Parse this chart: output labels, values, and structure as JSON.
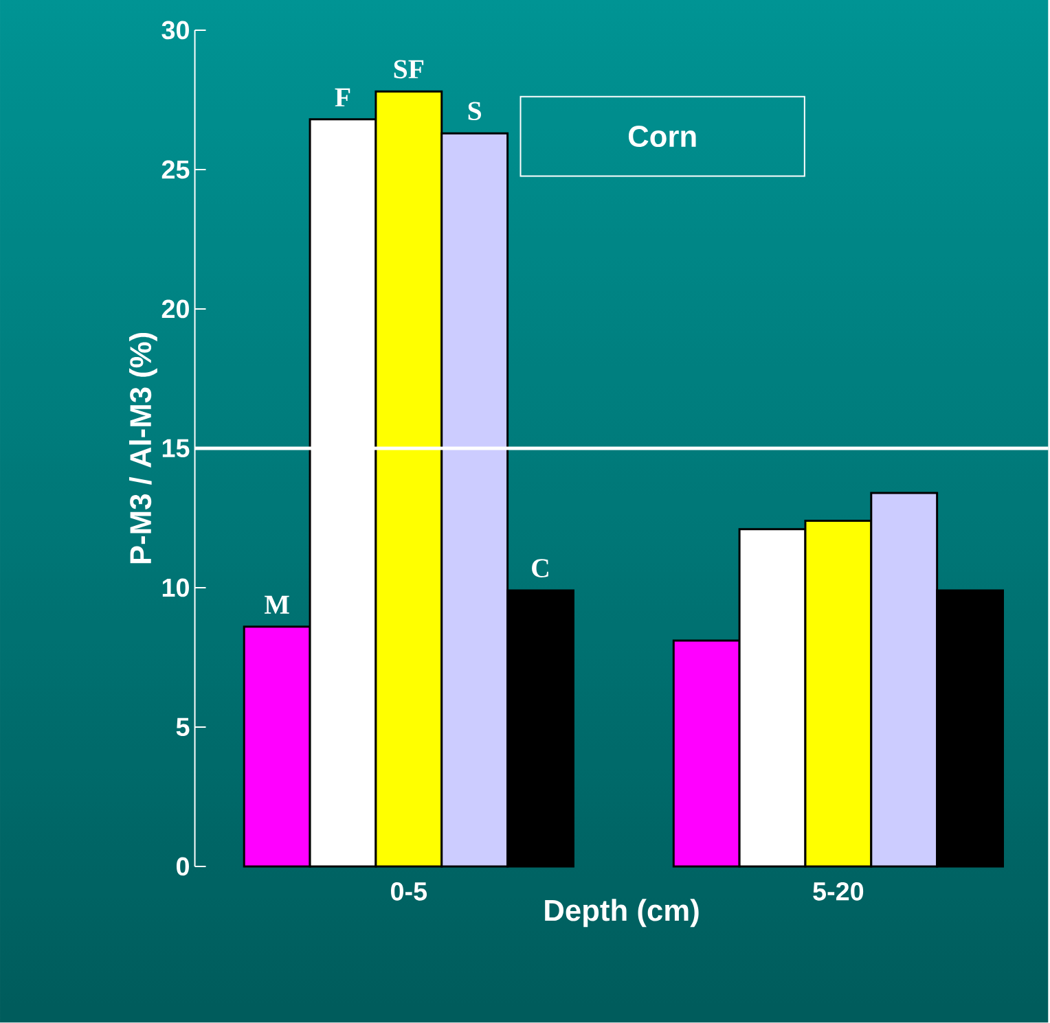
{
  "chart_data": {
    "type": "bar",
    "xlabel": "Depth (cm)",
    "ylabel": "P-M3 / Al-M3 (%)",
    "categories": [
      "0-5",
      "5-20"
    ],
    "series": [
      {
        "name": "M",
        "color": "#ff00ff",
        "values": [
          8.6,
          8.1
        ]
      },
      {
        "name": "F",
        "color": "#ffffff",
        "values": [
          26.8,
          12.1
        ]
      },
      {
        "name": "SF",
        "color": "#ffff00",
        "values": [
          27.8,
          12.4
        ]
      },
      {
        "name": "S",
        "color": "#ccccff",
        "values": [
          26.3,
          13.4
        ]
      },
      {
        "name": "C",
        "color": "#000000",
        "values": [
          9.9,
          9.9
        ]
      }
    ],
    "ylim": [
      0,
      30
    ],
    "yticks": [
      0,
      5,
      10,
      15,
      20,
      25,
      30
    ],
    "ref_lines": [
      {
        "axis": "y",
        "value": 15,
        "color": "#ffffff"
      }
    ],
    "annotations": [
      "Corn"
    ],
    "grid": false
  }
}
